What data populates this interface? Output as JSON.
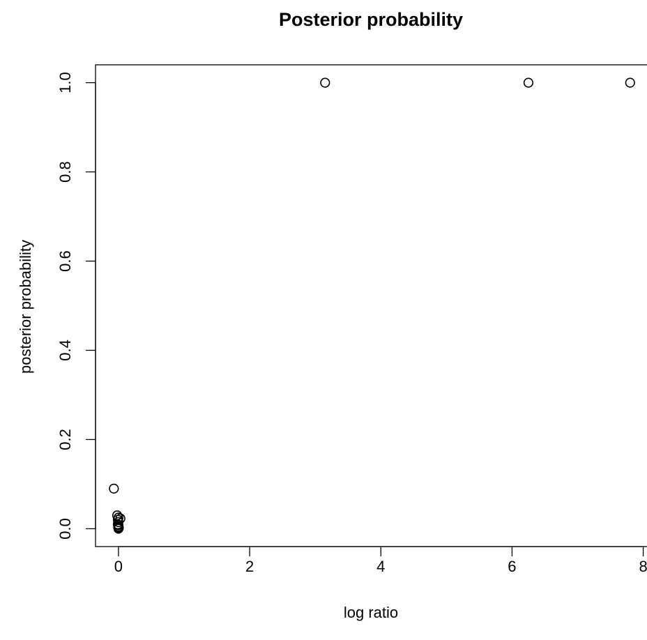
{
  "chart_data": {
    "type": "scatter",
    "title": "Posterior probability",
    "xlabel": "log ratio",
    "ylabel": "posterior probability",
    "xlim": [
      -0.35,
      8.1
    ],
    "ylim": [
      -0.04,
      1.04
    ],
    "x_ticks": [
      0,
      2,
      4,
      6,
      8
    ],
    "x_tick_labels": [
      "0",
      "2",
      "4",
      "6",
      "8"
    ],
    "y_ticks": [
      0.0,
      0.2,
      0.4,
      0.6,
      0.8,
      1.0
    ],
    "y_tick_labels": [
      "0.0",
      "0.2",
      "0.4",
      "0.6",
      "0.8",
      "1.0"
    ],
    "grid": false,
    "legend": false,
    "marker": "open-circle",
    "colors": {
      "points": "#000000",
      "axes": "#000000",
      "background": "#ffffff"
    },
    "points": [
      {
        "x": 3.15,
        "y": 1.0
      },
      {
        "x": 6.25,
        "y": 1.0
      },
      {
        "x": 7.8,
        "y": 1.0
      },
      {
        "x": -0.07,
        "y": 0.09
      },
      {
        "x": -0.02,
        "y": 0.03
      },
      {
        "x": 0.0,
        "y": 0.025
      },
      {
        "x": 0.03,
        "y": 0.023
      },
      {
        "x": -0.01,
        "y": 0.02
      },
      {
        "x": 0.0,
        "y": 0.015
      },
      {
        "x": -0.01,
        "y": 0.01
      },
      {
        "x": 0.0,
        "y": 0.008
      },
      {
        "x": 0.0,
        "y": 0.005
      },
      {
        "x": -0.005,
        "y": 0.003
      },
      {
        "x": 0.005,
        "y": 0.002
      },
      {
        "x": 0.0,
        "y": 0.001
      },
      {
        "x": 0.0,
        "y": 0.0
      }
    ]
  }
}
